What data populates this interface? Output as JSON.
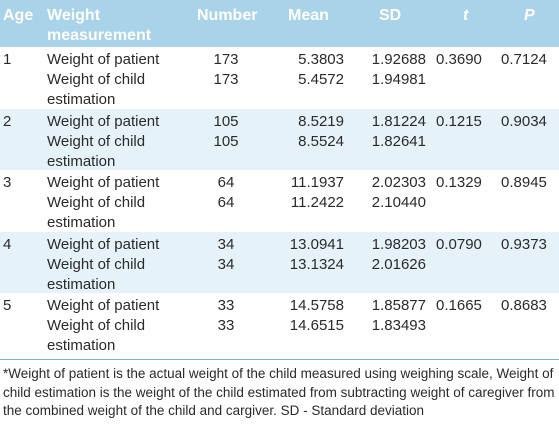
{
  "header": {
    "age": "Age",
    "weight_line1": "Weight",
    "weight_line2": "measurement",
    "number": "Number",
    "mean": "Mean",
    "sd": "SD",
    "t": "t",
    "p": "P"
  },
  "groups": [
    {
      "age": "1",
      "t": "0.3690",
      "p": "0.7124",
      "rows": [
        {
          "line1": "Weight of patient",
          "line2": "",
          "number": "173",
          "mean": "5.3803",
          "sd": "1.92688"
        },
        {
          "line1": "Weight of child",
          "line2": "estimation",
          "number": "173",
          "mean": "5.4572",
          "sd": "1.94981"
        }
      ]
    },
    {
      "age": "2",
      "t": "0.1215",
      "p": "0.9034",
      "rows": [
        {
          "line1": "Weight of patient",
          "line2": "",
          "number": "105",
          "mean": "8.5219",
          "sd": "1.81224"
        },
        {
          "line1": "Weight of child",
          "line2": "estimation",
          "number": "105",
          "mean": "8.5524",
          "sd": "1.82641"
        }
      ]
    },
    {
      "age": "3",
      "t": "0.1329",
      "p": "0.8945",
      "rows": [
        {
          "line1": "Weight of patient",
          "line2": "",
          "number": "64",
          "mean": "11.1937",
          "sd": "2.02303"
        },
        {
          "line1": "Weight of child",
          "line2": "estimation",
          "number": "64",
          "mean": "11.2422",
          "sd": "2.10440"
        }
      ]
    },
    {
      "age": "4",
      "t": "0.0790",
      "p": "0.9373",
      "rows": [
        {
          "line1": "Weight of patient",
          "line2": "",
          "number": "34",
          "mean": "13.0941",
          "sd": "1.98203"
        },
        {
          "line1": "Weight of child",
          "line2": "estimation",
          "number": "34",
          "mean": "13.1324",
          "sd": "2.01626"
        }
      ]
    },
    {
      "age": "5",
      "t": "0.1665",
      "p": "0.8683",
      "rows": [
        {
          "line1": "Weight of patient",
          "line2": "",
          "number": "33",
          "mean": "14.5758",
          "sd": "1.85877"
        },
        {
          "line1": "Weight of child",
          "line2": "estimation",
          "number": "33",
          "mean": "14.6515",
          "sd": "1.83493"
        }
      ]
    }
  ],
  "footnote": "*Weight of patient is the actual weight of the child measured using weighing scale, Weight of child estimation is the weight of the child estimated from subtracting weight of caregiver from the combined weight of the child and cargiver. SD - Standard deviation",
  "colors": {
    "header_bg": "#a9d3e9",
    "stripe_bg": "#e6f2f9",
    "rule": "#7fb6d3",
    "text": "#2a2a2a"
  }
}
